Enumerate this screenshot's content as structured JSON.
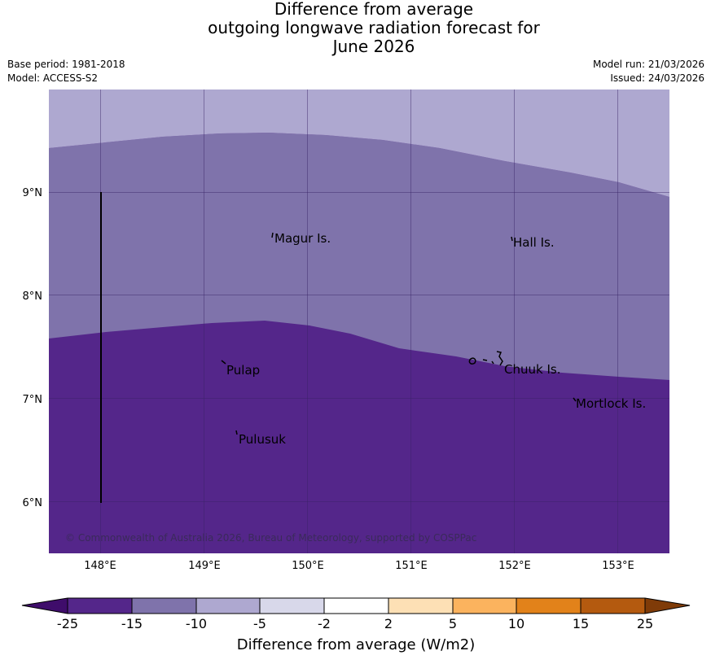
{
  "title": {
    "line1": "Difference from average",
    "line2": "outgoing longwave radiation forecast for",
    "line3": "June 2026"
  },
  "meta": {
    "base_period": "Base period: 1981-2018",
    "model": "Model: ACCESS-S2",
    "model_run": "Model run: 21/03/2026",
    "issued": "Issued: 24/03/2026"
  },
  "map": {
    "lon_ticks": [
      "148°E",
      "149°E",
      "150°E",
      "151°E",
      "152°E",
      "153°E"
    ],
    "lat_ticks": [
      "9°N",
      "8°N",
      "7°N",
      "6°N"
    ],
    "places": [
      {
        "name": "Magur Is."
      },
      {
        "name": "Hall Is."
      },
      {
        "name": "Pulap"
      },
      {
        "name": "Chuuk Is."
      },
      {
        "name": "Mortlock Is."
      },
      {
        "name": "Pulusuk"
      }
    ],
    "copyright": "© Commonwealth of Australia 2026, Bureau of Meteorology, supported by COSPPac"
  },
  "colorbar": {
    "label": "Difference from average (W/m2)",
    "ticks": [
      "-25",
      "-15",
      "-10",
      "-5",
      "-2",
      "2",
      "5",
      "10",
      "15",
      "25"
    ],
    "colors": {
      "under": "#3f0d6b",
      "b1": "#54268a",
      "b2": "#7f73ab",
      "b3": "#aea8d0",
      "b4": "#d8d8ea",
      "b5": "#ffffff",
      "b6": "#fde0b5",
      "b7": "#fbb35e",
      "b8": "#e2821a",
      "b9": "#b45a0f",
      "over": "#7f3b08"
    }
  }
}
